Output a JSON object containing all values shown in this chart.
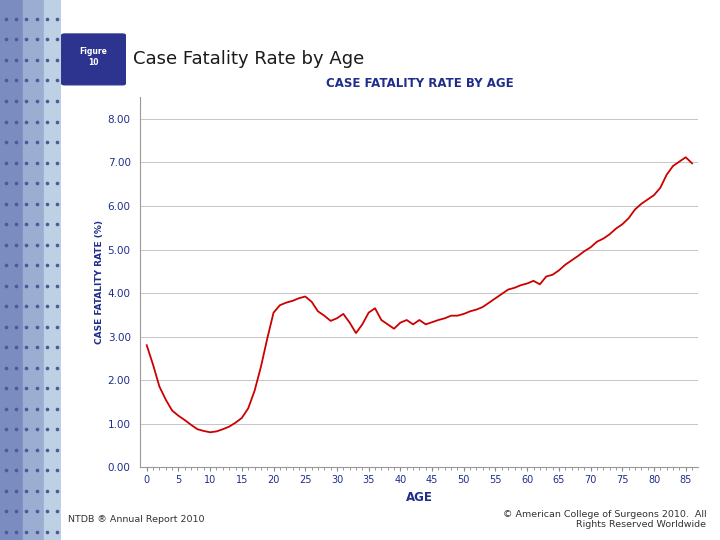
{
  "chart_title": "CASE FATALITY RATE BY AGE",
  "main_title": "Case Fatality Rate by Age",
  "xlabel": "AGE",
  "ylabel": "CASE FATALITY RATE (%)",
  "xlim": [
    -1,
    87
  ],
  "ylim": [
    0,
    8.5
  ],
  "yticks": [
    0.0,
    1.0,
    2.0,
    3.0,
    4.0,
    5.0,
    6.0,
    7.0,
    8.0
  ],
  "ytick_labels": [
    "0.00",
    "1.00",
    "2.00",
    "3.00",
    "4.00",
    "5.00",
    "6.00",
    "7.00",
    "8.00"
  ],
  "xtick_positions": [
    0,
    5,
    10,
    15,
    20,
    25,
    30,
    35,
    40,
    45,
    50,
    55,
    60,
    65,
    70,
    75,
    80,
    85
  ],
  "xtick_labels": [
    "0",
    "5",
    "10",
    "15",
    "20",
    "25",
    "30",
    "35",
    "40",
    "45",
    "50",
    "55",
    "60",
    "65",
    "70",
    "75",
    "80",
    "85"
  ],
  "line_color": "#CC0000",
  "line_width": 1.3,
  "bg_color": "#FFFFFF",
  "plot_bg_color": "#FFFFFF",
  "title_color": "#1F2E8C",
  "axis_label_color": "#1F2E8C",
  "tick_label_color": "#1F2E8C",
  "grid_color": "#BBBBBB",
  "footer_left": "NTDB ® Annual Report 2010",
  "footer_right": "© American College of Surgeons 2010.  All\nRights Reserved Worldwide",
  "figure_label": "Figure\n10",
  "ages": [
    0,
    1,
    2,
    3,
    4,
    5,
    6,
    7,
    8,
    9,
    10,
    11,
    12,
    13,
    14,
    15,
    16,
    17,
    18,
    19,
    20,
    21,
    22,
    23,
    24,
    25,
    26,
    27,
    28,
    29,
    30,
    31,
    32,
    33,
    34,
    35,
    36,
    37,
    38,
    39,
    40,
    41,
    42,
    43,
    44,
    45,
    46,
    47,
    48,
    49,
    50,
    51,
    52,
    53,
    54,
    55,
    56,
    57,
    58,
    59,
    60,
    61,
    62,
    63,
    64,
    65,
    66,
    67,
    68,
    69,
    70,
    71,
    72,
    73,
    74,
    75,
    76,
    77,
    78,
    79,
    80,
    81,
    82,
    83,
    84,
    85,
    86
  ],
  "cfr": [
    2.8,
    2.35,
    1.85,
    1.55,
    1.3,
    1.18,
    1.08,
    0.97,
    0.87,
    0.83,
    0.8,
    0.82,
    0.87,
    0.93,
    1.02,
    1.13,
    1.35,
    1.75,
    2.3,
    2.95,
    3.55,
    3.72,
    3.78,
    3.82,
    3.88,
    3.92,
    3.8,
    3.58,
    3.48,
    3.36,
    3.42,
    3.52,
    3.32,
    3.08,
    3.28,
    3.55,
    3.65,
    3.38,
    3.28,
    3.18,
    3.32,
    3.38,
    3.28,
    3.38,
    3.28,
    3.33,
    3.38,
    3.42,
    3.48,
    3.48,
    3.52,
    3.58,
    3.62,
    3.68,
    3.78,
    3.88,
    3.98,
    4.08,
    4.12,
    4.18,
    4.22,
    4.28,
    4.2,
    4.38,
    4.42,
    4.52,
    4.65,
    4.75,
    4.85,
    4.96,
    5.05,
    5.18,
    5.25,
    5.35,
    5.48,
    5.58,
    5.72,
    5.92,
    6.05,
    6.15,
    6.25,
    6.42,
    6.72,
    6.92,
    7.02,
    7.12,
    6.98
  ]
}
